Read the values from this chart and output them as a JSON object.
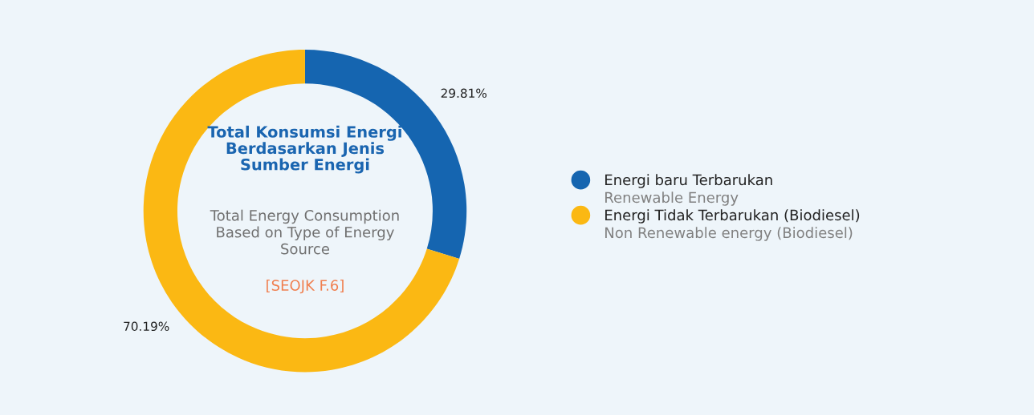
{
  "chart_data": {
    "type": "donut",
    "title": "Total Konsumsi Energi\nBerdasarkan Jenis\nSumber Energi",
    "subtitle": "Total Energy Consumption\nBased on Type of Energy\nSource",
    "annotations": [
      "[SEOJK F.6]"
    ],
    "categories": [
      "Energi baru Terbarukan\nRenewable Energy",
      "Energi Tidak Terbarukan (Biodiesel)\nNon Renewable energy (Biodiesel)"
    ],
    "values": [
      29.81,
      70.19
    ],
    "colors": [
      "#1565b0",
      "#fbb813"
    ],
    "value_labels": [
      "29.81%",
      "70.19%"
    ],
    "legend": "right"
  }
}
